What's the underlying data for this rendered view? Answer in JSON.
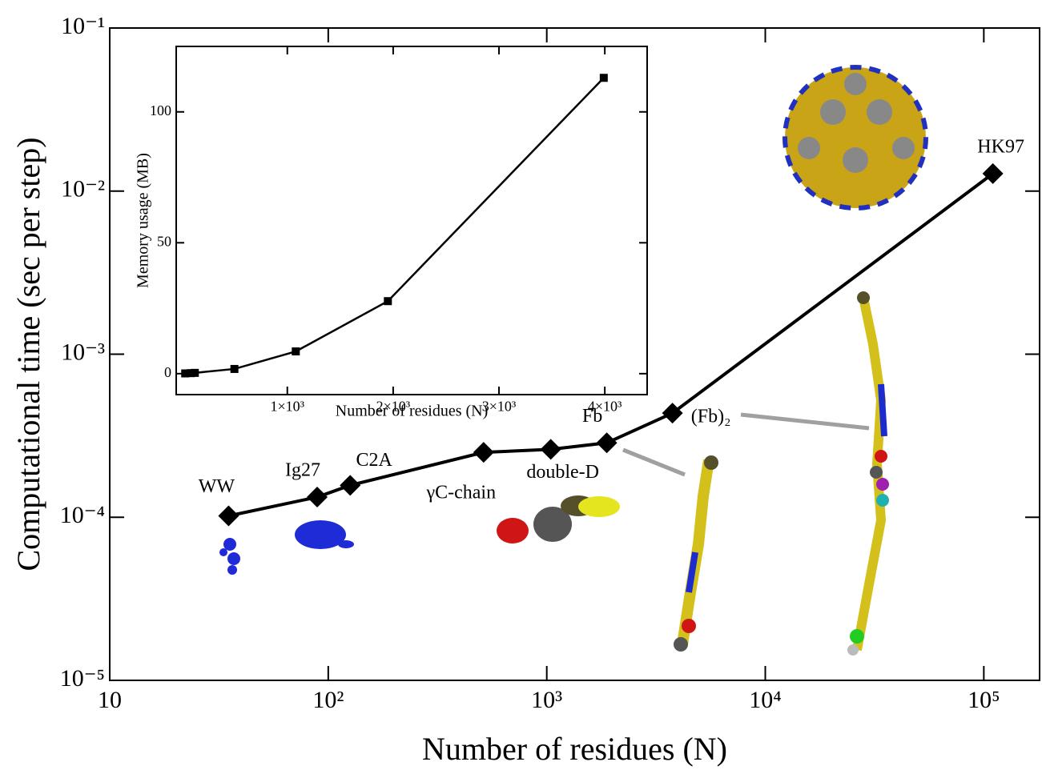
{
  "chart_data": [
    {
      "type": "line",
      "xlabel": "Number of residues (N)",
      "ylabel": "Computational time (sec per step)",
      "log_x": true,
      "log_y": true,
      "marker": "diamond",
      "color": "#000000",
      "x": [
        35,
        89,
        126,
        514,
        1043,
        1882,
        3760,
        110000
      ],
      "values": [
        0.000102,
        0.000133,
        0.000157,
        0.00025,
        0.000261,
        0.000286,
        0.000435,
        0.0128
      ],
      "point_labels": [
        "WW",
        "Ig27",
        "C2A",
        "γC-chain",
        "double-D",
        "Fb",
        "(Fb)₂",
        "HK97"
      ],
      "xlim": [
        10,
        180000
      ],
      "xticks": [
        10,
        {
          "value": 100,
          "label": "10²"
        },
        {
          "value": 1000,
          "label": "10³"
        },
        {
          "value": 10000,
          "label": "10⁴"
        },
        {
          "value": 100000,
          "label": "10⁵"
        }
      ],
      "ylim": [
        1e-05,
        0.1
      ],
      "yticks": [
        {
          "value": 1e-05,
          "label": "10⁻⁵"
        },
        {
          "value": 0.0001,
          "label": "10⁻⁴"
        },
        {
          "value": 0.001,
          "label": "10⁻³"
        },
        {
          "value": 0.01,
          "label": "10⁻²"
        },
        {
          "value": 0.1,
          "label": "10⁻¹"
        }
      ]
    },
    {
      "type": "line",
      "xlabel": "Number of residues (N)",
      "ylabel": "Memory usage (MB)",
      "log_x": false,
      "log_y": false,
      "marker": "square",
      "color": "#000000",
      "x": [
        35,
        89,
        126,
        500,
        1080,
        1950,
        3990
      ],
      "values": [
        0.1,
        0.2,
        0.3,
        1.8,
        8.5,
        27.7,
        113
      ],
      "xlim": [
        -50,
        4400
      ],
      "xticks": [
        {
          "value": 1000,
          "label": "1×10³"
        },
        {
          "value": 2000,
          "label": "2×10³"
        },
        {
          "value": 3000,
          "label": "3×10³"
        },
        {
          "value": 4000,
          "label": "4×10³"
        }
      ],
      "ylim": [
        -8,
        125
      ],
      "yticks": [
        0,
        50,
        100
      ]
    }
  ]
}
